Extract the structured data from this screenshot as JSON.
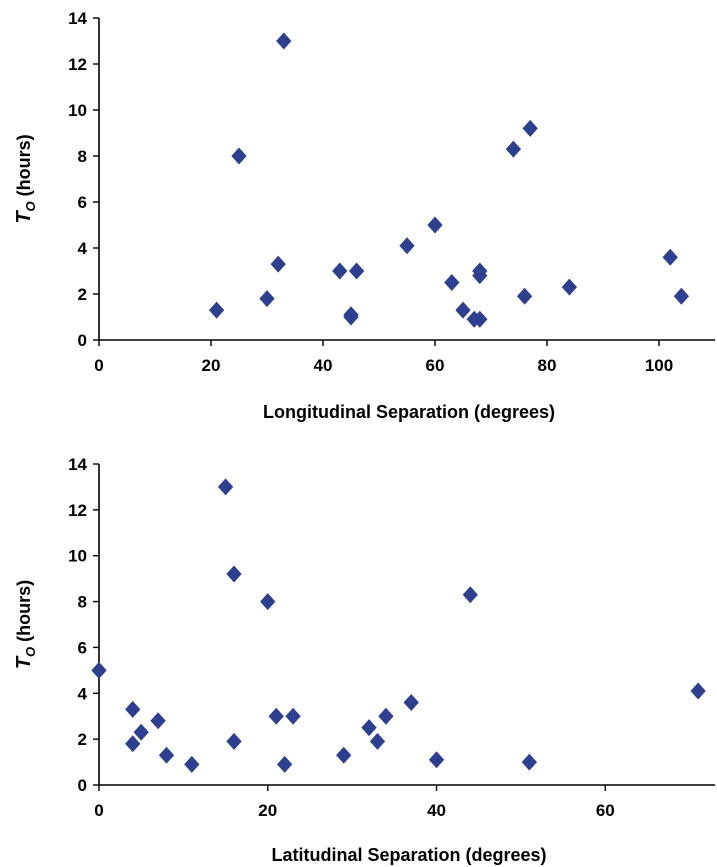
{
  "colors": {
    "marker": "#2f3f8f",
    "axis": "#000000",
    "background": "#ffffff"
  },
  "chart_data": [
    {
      "type": "scatter",
      "title": "",
      "xlabel": "Longitudinal Separation (degrees)",
      "ylabel_main": "T",
      "ylabel_sub": "O",
      "ylabel_rest": " (hours)",
      "xlim": [
        0,
        110
      ],
      "ylim": [
        0,
        14
      ],
      "xticks": [
        0,
        20,
        40,
        60,
        80,
        100
      ],
      "yticks": [
        0,
        2,
        4,
        6,
        8,
        10,
        12,
        14
      ],
      "marker": "diamond",
      "grid": false,
      "x": [
        21,
        25,
        30,
        32,
        33,
        43,
        45,
        45,
        46,
        55,
        60,
        63,
        65,
        67,
        68,
        68,
        68,
        74,
        76,
        77,
        84,
        102,
        104
      ],
      "y": [
        1.3,
        8.0,
        1.8,
        3.3,
        13.0,
        3.0,
        1.0,
        1.1,
        3.0,
        4.1,
        5.0,
        2.5,
        1.3,
        0.9,
        0.9,
        2.8,
        3.0,
        8.3,
        1.9,
        9.2,
        2.3,
        3.6,
        1.9
      ]
    },
    {
      "type": "scatter",
      "title": "",
      "xlabel": "Latitudinal Separation (degrees)",
      "ylabel_main": "T",
      "ylabel_sub": "O",
      "ylabel_rest": " (hours)",
      "xlim": [
        0,
        73
      ],
      "ylim": [
        0,
        14
      ],
      "xticks": [
        0,
        20,
        40,
        60
      ],
      "yticks": [
        0,
        2,
        4,
        6,
        8,
        10,
        12,
        14
      ],
      "marker": "diamond",
      "grid": false,
      "x": [
        0,
        4,
        4,
        5,
        7,
        8,
        11,
        15,
        16,
        16,
        20,
        21,
        22,
        23,
        29,
        32,
        33,
        34,
        37,
        40,
        44,
        51,
        71
      ],
      "y": [
        5.0,
        3.3,
        1.8,
        2.3,
        2.8,
        1.3,
        0.9,
        13.0,
        9.2,
        1.9,
        8.0,
        3.0,
        0.9,
        3.0,
        1.3,
        2.5,
        1.9,
        3.0,
        3.6,
        1.1,
        8.3,
        1.0,
        4.1
      ]
    }
  ]
}
